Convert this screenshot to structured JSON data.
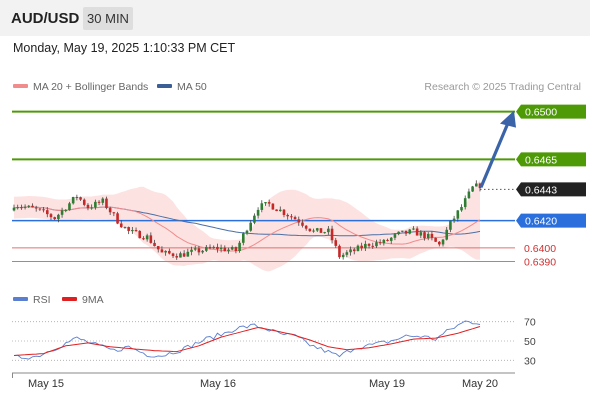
{
  "header": {
    "pair": "AUD/USD",
    "timeframe": "30 MIN"
  },
  "datetime": "Monday, May 19, 2025 1:10:33 PM CET",
  "legend": {
    "bb_label": "MA 20 + Bollinger Bands",
    "ma50_label": "MA 50",
    "credit": "Research © 2025 Trading Central"
  },
  "colors": {
    "resistance": "#4d9a06",
    "support": "#e07070",
    "pivot": "#2a6fdb",
    "current": "#222222",
    "ma20": "#f08c8c",
    "ma50": "#4a6fa5",
    "rsi": "#5b7fd0",
    "rsi_ma": "#e02020",
    "arrow": "#3a63a8"
  },
  "chart_data": [
    {
      "type": "candlestick",
      "x_ticks": [
        "May 15",
        "May 16",
        "May 19",
        "May 20"
      ],
      "ylim": [
        0.6375,
        0.651
      ],
      "levels": [
        {
          "value": 0.65,
          "label": "0.6500",
          "kind": "resistance"
        },
        {
          "value": 0.6465,
          "label": "0.6465",
          "kind": "resistance"
        },
        {
          "value": 0.6443,
          "label": "0.6443",
          "kind": "current"
        },
        {
          "value": 0.642,
          "label": "0.6420",
          "kind": "pivot"
        },
        {
          "value": 0.64,
          "label": "0.6400",
          "kind": "support"
        },
        {
          "value": 0.639,
          "label": "0.6390",
          "kind": "support"
        }
      ],
      "anchors": [
        [
          0,
          0.6432
        ],
        [
          6,
          0.6428
        ],
        [
          11,
          0.6422
        ],
        [
          14,
          0.643
        ],
        [
          17,
          0.6438
        ],
        [
          20,
          0.643
        ],
        [
          24,
          0.6434
        ],
        [
          28,
          0.642
        ],
        [
          31,
          0.6412
        ],
        [
          36,
          0.6408
        ],
        [
          40,
          0.6396
        ],
        [
          45,
          0.6395
        ],
        [
          50,
          0.6398
        ],
        [
          55,
          0.64
        ],
        [
          60,
          0.6398
        ],
        [
          63,
          0.6415
        ],
        [
          66,
          0.643
        ],
        [
          69,
          0.6432
        ],
        [
          73,
          0.6426
        ],
        [
          77,
          0.642
        ],
        [
          81,
          0.6412
        ],
        [
          85,
          0.6412
        ],
        [
          88,
          0.6394
        ],
        [
          92,
          0.6398
        ],
        [
          96,
          0.6403
        ],
        [
          100,
          0.6404
        ],
        [
          104,
          0.641
        ],
        [
          108,
          0.6412
        ],
        [
          112,
          0.6408
        ],
        [
          115,
          0.6402
        ],
        [
          118,
          0.6418
        ],
        [
          121,
          0.643
        ],
        [
          124,
          0.6444
        ],
        [
          126,
          0.6446
        ]
      ]
    },
    {
      "type": "line",
      "series_names": [
        "RSI",
        "9MA"
      ],
      "yticks": [
        70,
        50,
        30
      ],
      "ylim": [
        20,
        80
      ],
      "rsi_anchors": [
        [
          0,
          33
        ],
        [
          6,
          34
        ],
        [
          12,
          44
        ],
        [
          17,
          53
        ],
        [
          22,
          46
        ],
        [
          27,
          40
        ],
        [
          31,
          44
        ],
        [
          36,
          36
        ],
        [
          40,
          35
        ],
        [
          46,
          42
        ],
        [
          52,
          52
        ],
        [
          57,
          58
        ],
        [
          60,
          63
        ],
        [
          65,
          66
        ],
        [
          68,
          63
        ],
        [
          72,
          57
        ],
        [
          76,
          55
        ],
        [
          80,
          46
        ],
        [
          84,
          40
        ],
        [
          88,
          34
        ],
        [
          92,
          43
        ],
        [
          97,
          46
        ],
        [
          102,
          50
        ],
        [
          106,
          55
        ],
        [
          110,
          55
        ],
        [
          114,
          52
        ],
        [
          118,
          62
        ],
        [
          122,
          70
        ],
        [
          126,
          69
        ]
      ],
      "ma_anchors": [
        [
          0,
          35
        ],
        [
          8,
          37
        ],
        [
          14,
          45
        ],
        [
          20,
          48
        ],
        [
          26,
          44
        ],
        [
          32,
          42
        ],
        [
          38,
          40
        ],
        [
          44,
          39
        ],
        [
          50,
          45
        ],
        [
          56,
          54
        ],
        [
          62,
          60
        ],
        [
          66,
          64
        ],
        [
          70,
          61
        ],
        [
          75,
          57
        ],
        [
          80,
          51
        ],
        [
          85,
          44
        ],
        [
          90,
          41
        ],
        [
          96,
          43
        ],
        [
          102,
          47
        ],
        [
          108,
          52
        ],
        [
          114,
          53
        ],
        [
          120,
          58
        ],
        [
          126,
          65
        ]
      ]
    }
  ]
}
